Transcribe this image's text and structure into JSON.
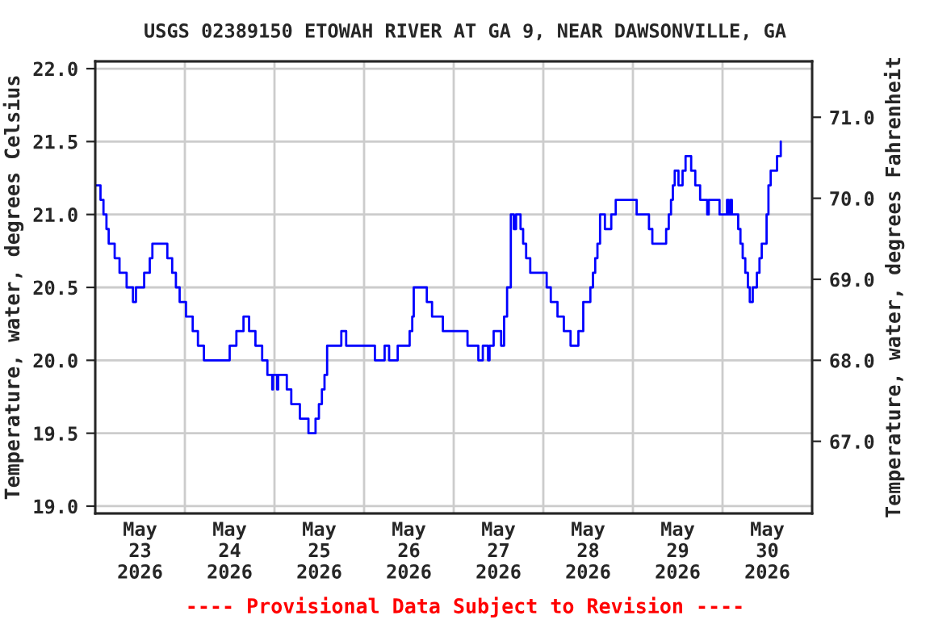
{
  "chart_data": {
    "type": "step",
    "title": "USGS 02389150 ETOWAH RIVER AT GA 9, NEAR DAWSONVILLE, GA",
    "ylabel": "Temperature, water, degrees Celsius",
    "y2label": "Temperature, water, degrees Fahrenheit",
    "annotations": [
      "---- Provisional Data Subject to Revision ----"
    ],
    "xlim": [
      "2026-05-23T00:00",
      "2026-05-31T00:00"
    ],
    "xticks": [
      {
        "value": "2026-05-23T12:00",
        "label": "May\n23\n2026"
      },
      {
        "value": "2026-05-24T12:00",
        "label": "May\n24\n2026"
      },
      {
        "value": "2026-05-25T12:00",
        "label": "May\n25\n2026"
      },
      {
        "value": "2026-05-26T12:00",
        "label": "May\n26\n2026"
      },
      {
        "value": "2026-05-27T12:00",
        "label": "May\n27\n2026"
      },
      {
        "value": "2026-05-28T12:00",
        "label": "May\n28\n2026"
      },
      {
        "value": "2026-05-29T12:00",
        "label": "May\n29\n2026"
      },
      {
        "value": "2026-05-30T12:00",
        "label": "May\n30\n2026"
      },
      {
        "value": "2026-05-24T00:00",
        "label": null
      },
      {
        "value": "2026-05-25T00:00",
        "label": null
      },
      {
        "value": "2026-05-26T00:00",
        "label": null
      },
      {
        "value": "2026-05-27T00:00",
        "label": null
      },
      {
        "value": "2026-05-28T00:00",
        "label": null
      },
      {
        "value": "2026-05-29T00:00",
        "label": null
      },
      {
        "value": "2026-05-30T00:00",
        "label": null
      }
    ],
    "ylim": [
      18.95,
      22.05
    ],
    "yticks": [
      {
        "value": 19.0,
        "label": "19.0"
      },
      {
        "value": 19.5,
        "label": "19.5"
      },
      {
        "value": 20.0,
        "label": "20.0"
      },
      {
        "value": 20.5,
        "label": "20.5"
      },
      {
        "value": 21.0,
        "label": "21.0"
      },
      {
        "value": 21.5,
        "label": "21.5"
      },
      {
        "value": 22.0,
        "label": "22.0"
      }
    ],
    "y2lim": [
      66.11,
      71.69
    ],
    "y2ticks": [
      {
        "value": 67,
        "label": "67.0"
      },
      {
        "value": 68,
        "label": "68.0"
      },
      {
        "value": 69,
        "label": "69.0"
      },
      {
        "value": 70,
        "label": "70.0"
      },
      {
        "value": 71,
        "label": "71.0"
      }
    ],
    "grid": true,
    "series": [
      {
        "color": "#0000ff",
        "x": [
          "2026-05-23T00:00",
          "2026-05-23T01:24",
          "2026-05-23T02:12",
          "2026-05-23T03:00",
          "2026-05-23T03:36",
          "2026-05-23T05:12",
          "2026-05-23T06:30",
          "2026-05-23T08:24",
          "2026-05-23T10:06",
          "2026-05-23T10:54",
          "2026-05-23T13:06",
          "2026-05-23T14:36",
          "2026-05-23T15:18",
          "2026-05-23T19:18",
          "2026-05-23T20:36",
          "2026-05-23T21:36",
          "2026-05-23T22:36",
          "2026-05-24T00:18",
          "2026-05-24T02:06",
          "2026-05-24T03:30",
          "2026-05-24T05:06",
          "2026-05-24T12:00",
          "2026-05-24T13:48",
          "2026-05-24T15:42",
          "2026-05-24T17:12",
          "2026-05-24T18:54",
          "2026-05-24T20:42",
          "2026-05-24T22:06",
          "2026-05-24T23:24",
          "2026-05-24T23:36",
          "2026-05-25T00:42",
          "2026-05-25T01:00",
          "2026-05-25T03:18",
          "2026-05-25T04:30",
          "2026-05-25T06:48",
          "2026-05-25T09:06",
          "2026-05-25T11:00",
          "2026-05-25T11:54",
          "2026-05-25T12:42",
          "2026-05-25T13:24",
          "2026-05-25T14:06",
          "2026-05-25T17:54",
          "2026-05-25T19:12",
          "2026-05-26T02:54",
          "2026-05-26T05:30",
          "2026-05-26T06:42",
          "2026-05-26T09:00",
          "2026-05-26T12:12",
          "2026-05-26T12:54",
          "2026-05-26T13:18",
          "2026-05-26T16:48",
          "2026-05-26T18:12",
          "2026-05-26T21:06",
          "2026-05-27T03:42",
          "2026-05-27T06:36",
          "2026-05-27T07:48",
          "2026-05-27T09:12",
          "2026-05-27T09:36",
          "2026-05-27T10:42",
          "2026-05-27T12:42",
          "2026-05-27T13:30",
          "2026-05-27T14:18",
          "2026-05-27T15:18",
          "2026-05-27T16:06",
          "2026-05-27T16:42",
          "2026-05-27T17:54",
          "2026-05-27T18:36",
          "2026-05-27T19:24",
          "2026-05-27T20:30",
          "2026-05-28T00:54",
          "2026-05-28T02:00",
          "2026-05-28T03:48",
          "2026-05-28T05:30",
          "2026-05-28T07:18",
          "2026-05-28T09:24",
          "2026-05-28T10:42",
          "2026-05-28T12:36",
          "2026-05-28T13:18",
          "2026-05-28T13:54",
          "2026-05-28T14:30",
          "2026-05-28T15:12",
          "2026-05-28T16:30",
          "2026-05-28T18:12",
          "2026-05-28T19:24",
          "2026-05-29T01:00",
          "2026-05-29T04:18",
          "2026-05-29T05:12",
          "2026-05-29T08:54",
          "2026-05-29T09:36",
          "2026-05-29T10:12",
          "2026-05-29T10:42",
          "2026-05-29T11:12",
          "2026-05-29T12:12",
          "2026-05-29T13:18",
          "2026-05-29T14:06",
          "2026-05-29T15:36",
          "2026-05-29T16:42",
          "2026-05-29T18:00",
          "2026-05-29T19:54",
          "2026-05-29T20:18",
          "2026-05-29T23:12",
          "2026-05-30T01:12",
          "2026-05-30T01:36",
          "2026-05-30T02:06",
          "2026-05-30T02:30",
          "2026-05-30T04:12",
          "2026-05-30T04:48",
          "2026-05-30T05:24",
          "2026-05-30T06:06",
          "2026-05-30T06:48",
          "2026-05-30T07:18",
          "2026-05-30T08:06",
          "2026-05-30T09:12",
          "2026-05-30T09:54",
          "2026-05-30T10:30",
          "2026-05-30T11:48",
          "2026-05-30T12:18",
          "2026-05-30T12:54",
          "2026-05-30T14:36",
          "2026-05-30T15:36"
        ],
        "values": [
          21.2,
          21.1,
          21.0,
          20.9,
          20.8,
          20.7,
          20.6,
          20.5,
          20.4,
          20.5,
          20.6,
          20.7,
          20.8,
          20.7,
          20.6,
          20.5,
          20.4,
          20.3,
          20.2,
          20.1,
          20.0,
          20.1,
          20.2,
          20.3,
          20.2,
          20.1,
          20.0,
          19.9,
          19.8,
          19.9,
          19.8,
          19.9,
          19.8,
          19.7,
          19.6,
          19.5,
          19.6,
          19.7,
          19.8,
          19.9,
          20.1,
          20.2,
          20.1,
          20.0,
          20.1,
          20.0,
          20.1,
          20.2,
          20.3,
          20.5,
          20.4,
          20.3,
          20.2,
          20.1,
          20.0,
          20.1,
          20.0,
          20.1,
          20.2,
          20.1,
          20.3,
          20.5,
          21.0,
          20.9,
          21.0,
          20.9,
          20.8,
          20.7,
          20.6,
          20.5,
          20.4,
          20.3,
          20.2,
          20.1,
          20.2,
          20.4,
          20.5,
          20.6,
          20.7,
          20.8,
          21.0,
          20.9,
          21.0,
          21.1,
          21.0,
          20.9,
          20.8,
          20.9,
          21.0,
          21.1,
          21.2,
          21.3,
          21.2,
          21.3,
          21.4,
          21.3,
          21.2,
          21.1,
          21.0,
          21.1,
          21.0,
          21.1,
          21.0,
          21.1,
          21.0,
          20.9,
          20.8,
          20.7,
          20.6,
          20.5,
          20.4,
          20.5,
          20.6,
          20.7,
          20.8,
          21.0,
          21.2,
          21.3,
          21.4,
          21.5
        ]
      }
    ]
  }
}
